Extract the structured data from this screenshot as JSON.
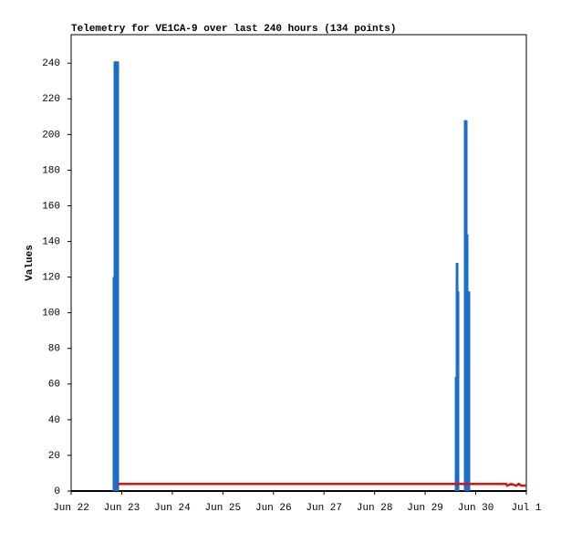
{
  "chart_data": {
    "type": "bar",
    "title": "Telemetry for VE1CA-9 over last 240 hours (134 points)",
    "y_label": "Values",
    "xlim": [
      0,
      9
    ],
    "xticks": [
      {
        "value": 0,
        "label": "Jun 22"
      },
      {
        "value": 1,
        "label": "Jun 23"
      },
      {
        "value": 2,
        "label": "Jun 24"
      },
      {
        "value": 3,
        "label": "Jun 25"
      },
      {
        "value": 4,
        "label": "Jun 26"
      },
      {
        "value": 5,
        "label": "Jun 27"
      },
      {
        "value": 6,
        "label": "Jun 28"
      },
      {
        "value": 7,
        "label": "Jun 29"
      },
      {
        "value": 8,
        "label": "Jun 30"
      },
      {
        "value": 9,
        "label": "Jul 1"
      }
    ],
    "ylim": [
      0,
      256
    ],
    "yticks": [
      0,
      20,
      40,
      60,
      80,
      100,
      120,
      140,
      160,
      180,
      200,
      220,
      240
    ],
    "series": [
      {
        "type": "bar",
        "color": "#1a6ec8",
        "x": [
          0.848,
          0.866,
          0.884,
          0.902,
          0.92,
          7.612,
          7.63,
          7.648,
          7.792,
          7.81,
          7.828,
          7.846,
          7.864
        ],
        "values": [
          120,
          241,
          241,
          241,
          241,
          64,
          128,
          112,
          208,
          208,
          144,
          112,
          112
        ]
      },
      {
        "type": "line",
        "color": "#dd1111",
        "x": [
          0.92,
          2,
          4,
          6,
          8,
          8.6,
          8.62,
          8.7,
          8.8,
          8.85,
          8.9,
          8.95,
          9
        ],
        "values": [
          4,
          4,
          4,
          4,
          4,
          4,
          3,
          4,
          3,
          4,
          3,
          3,
          3
        ]
      }
    ]
  }
}
